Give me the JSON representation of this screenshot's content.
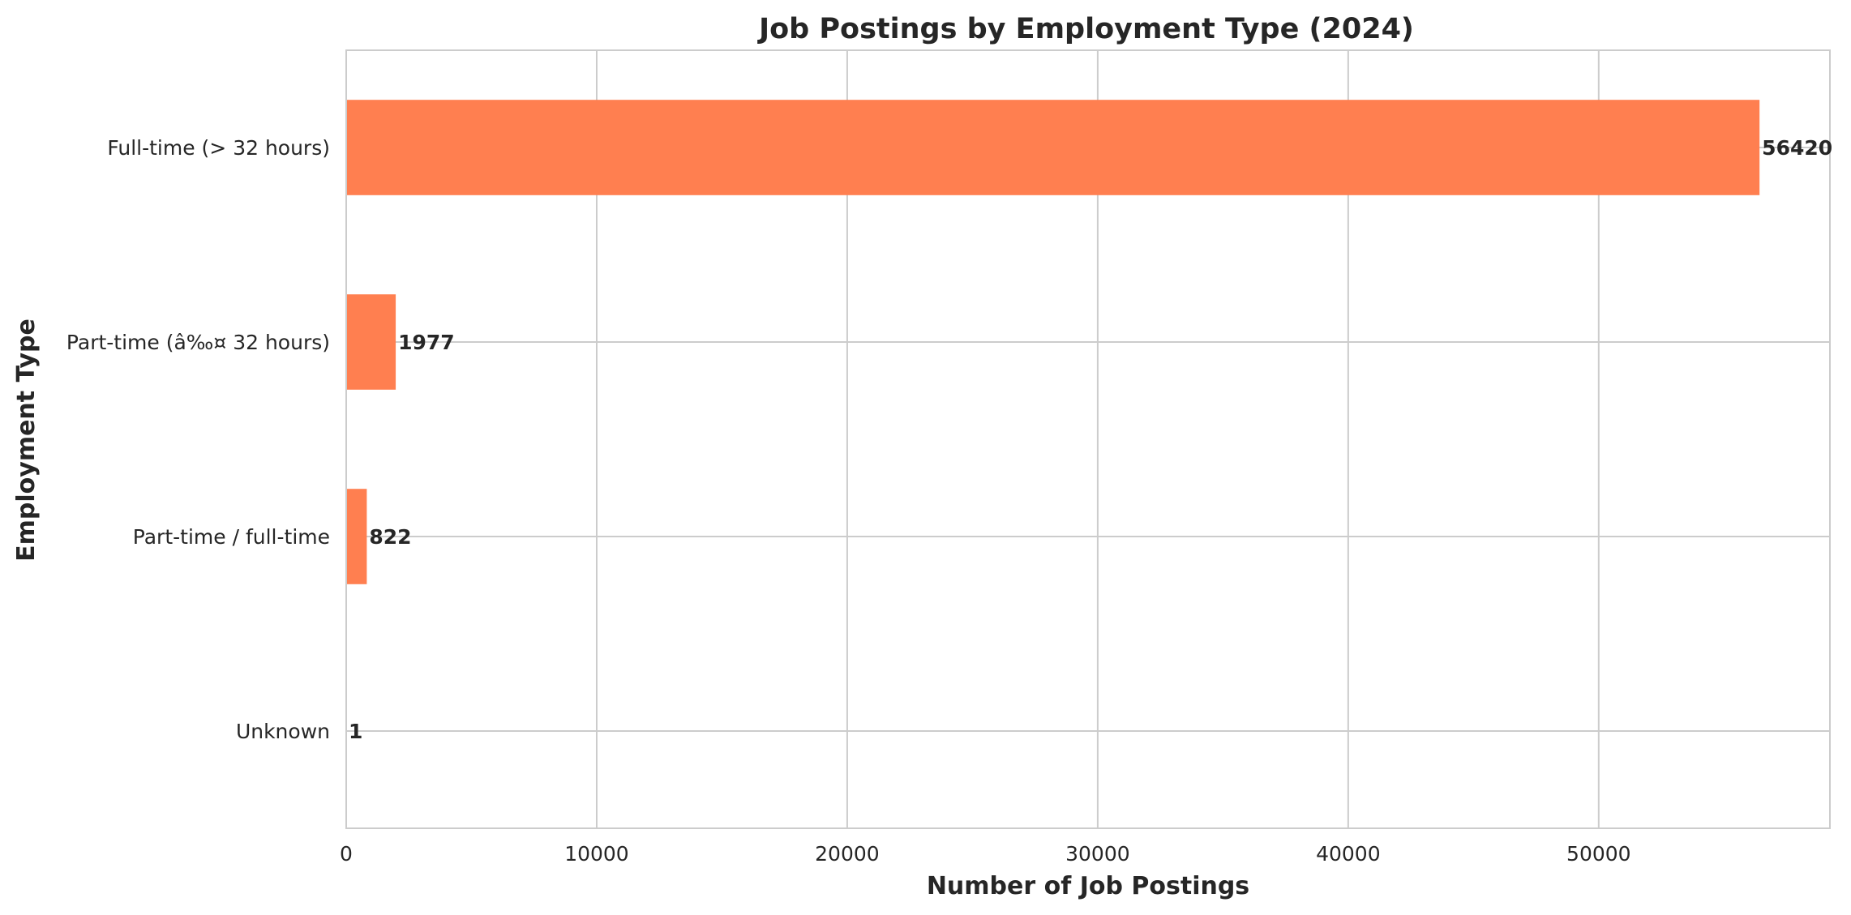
{
  "chart_data": {
    "type": "bar",
    "orientation": "horizontal",
    "title": "Job Postings by Employment Type (2024)",
    "xlabel": "Number of Job Postings",
    "ylabel": "Employment Type",
    "categories": [
      "Full-time (> 32 hours)",
      "Part-time (â‰¤ 32 hours)",
      "Part-time / full-time",
      "Unknown"
    ],
    "values": [
      56420,
      1977,
      822,
      1
    ],
    "data_labels": [
      "56420",
      "1977",
      "822",
      "1"
    ],
    "xlim": [
      0,
      59230
    ],
    "x_ticks": [
      0,
      10000,
      20000,
      30000,
      40000,
      50000
    ],
    "x_tick_labels": [
      "0",
      "10000",
      "20000",
      "30000",
      "40000",
      "50000"
    ],
    "grid": true,
    "bar_color": "#ff7f50"
  }
}
